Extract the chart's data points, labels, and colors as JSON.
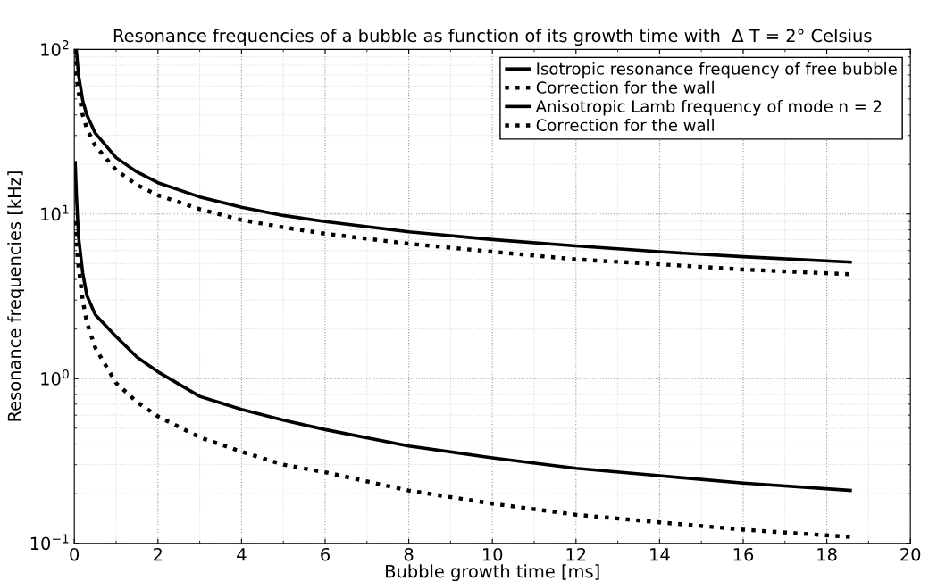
{
  "chart_data": {
    "type": "line",
    "title": "Resonance frequencies of a bubble as function of its growth time with  Δ T = 2° Celsius",
    "xlabel": "Bubble growth time [ms]",
    "ylabel": "Resonance frequencies [kHz]",
    "log": "y",
    "grid": true,
    "legend": "top right",
    "marker": "none",
    "xlim": [
      0,
      20
    ],
    "xticks": [
      0,
      2,
      4,
      6,
      8,
      10,
      12,
      14,
      16,
      18,
      20
    ],
    "ylim": [
      0.1,
      100
    ],
    "yticks": [
      {
        "value": 0.1,
        "label": "10$^{−1}$"
      },
      {
        "value": 1,
        "label": "10$^{0}$"
      },
      {
        "value": 10,
        "label": "10$^{1}$"
      },
      {
        "value": 100,
        "label": "10$^{2}$"
      }
    ],
    "x": [
      0.02,
      0.05,
      0.1,
      0.2,
      0.3,
      0.5,
      1,
      1.5,
      2,
      3,
      4,
      5,
      6,
      8,
      10,
      12,
      14,
      16,
      18.6
    ],
    "series": [
      {
        "name": "Isotropic resonance frequency of free bubble",
        "color": "#000000",
        "line_style": "solid",
        "values": [
          100,
          98,
          70,
          49,
          40,
          31,
          22,
          18,
          15.5,
          12.7,
          11,
          9.8,
          9.0,
          7.8,
          7.0,
          6.4,
          5.9,
          5.5,
          5.1
        ]
      },
      {
        "name": "Correction for the wall",
        "color": "#000000",
        "line_style": "dotted",
        "values": [
          85,
          68,
          55,
          40,
          33,
          26,
          18.5,
          15,
          13,
          10.7,
          9.2,
          8.3,
          7.6,
          6.6,
          5.9,
          5.3,
          4.95,
          4.6,
          4.3
        ]
      },
      {
        "name": "Anisotropic Lamb frequency of mode n = 2",
        "color": "#000000",
        "line_style": "solid",
        "values": [
          21,
          13,
          7.3,
          4.4,
          3.2,
          2.45,
          1.8,
          1.35,
          1.1,
          0.78,
          0.65,
          0.56,
          0.49,
          0.39,
          0.33,
          0.285,
          0.257,
          0.232,
          0.209
        ]
      },
      {
        "name": "Correction for the wall",
        "color": "#000000",
        "line_style": "dotted",
        "values": [
          9,
          6.5,
          4.8,
          3.0,
          2.2,
          1.54,
          0.94,
          0.72,
          0.59,
          0.44,
          0.36,
          0.3,
          0.27,
          0.209,
          0.174,
          0.149,
          0.134,
          0.121,
          0.109
        ]
      }
    ]
  }
}
